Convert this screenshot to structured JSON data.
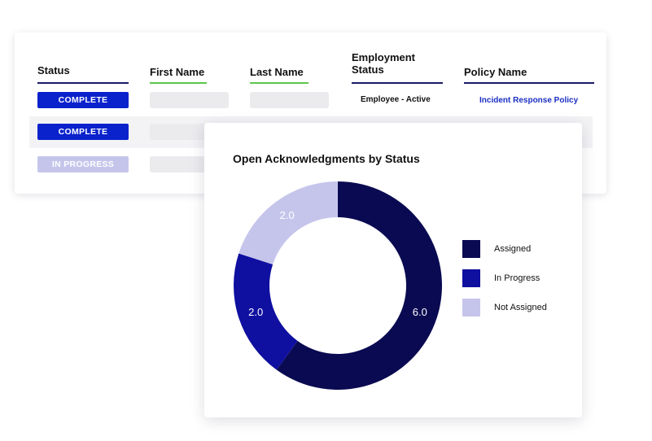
{
  "table": {
    "headers": {
      "status": "Status",
      "first_name": "First Name",
      "last_name": "Last Name",
      "employment_status": "Employment Status",
      "policy_name": "Policy Name"
    },
    "rows": [
      {
        "status": "COMPLETE",
        "employment_status": "Employee - Active",
        "policy_name": "Incident Response Policy"
      },
      {
        "status": "COMPLETE"
      },
      {
        "status": "IN PROGRESS"
      }
    ]
  },
  "colors": {
    "complete": "#0a22cc",
    "in_progress_badge": "#c5c5ec",
    "policy_link": "#1a2fc4",
    "header_underline_navy": "#1a1a66",
    "header_underline_green": "#5cc84a"
  },
  "chart_data": {
    "type": "pie",
    "donut": true,
    "title": "Open Acknowledgments by Status",
    "legend_position": "right",
    "categories": [
      "Assigned",
      "In Progress",
      "Not Assigned"
    ],
    "values": [
      6.0,
      2.0,
      2.0
    ],
    "value_labels": [
      "6.0",
      "2.0",
      "2.0"
    ],
    "colors": [
      "#0a0a52",
      "#0f0fa0",
      "#c5c5ec"
    ]
  }
}
